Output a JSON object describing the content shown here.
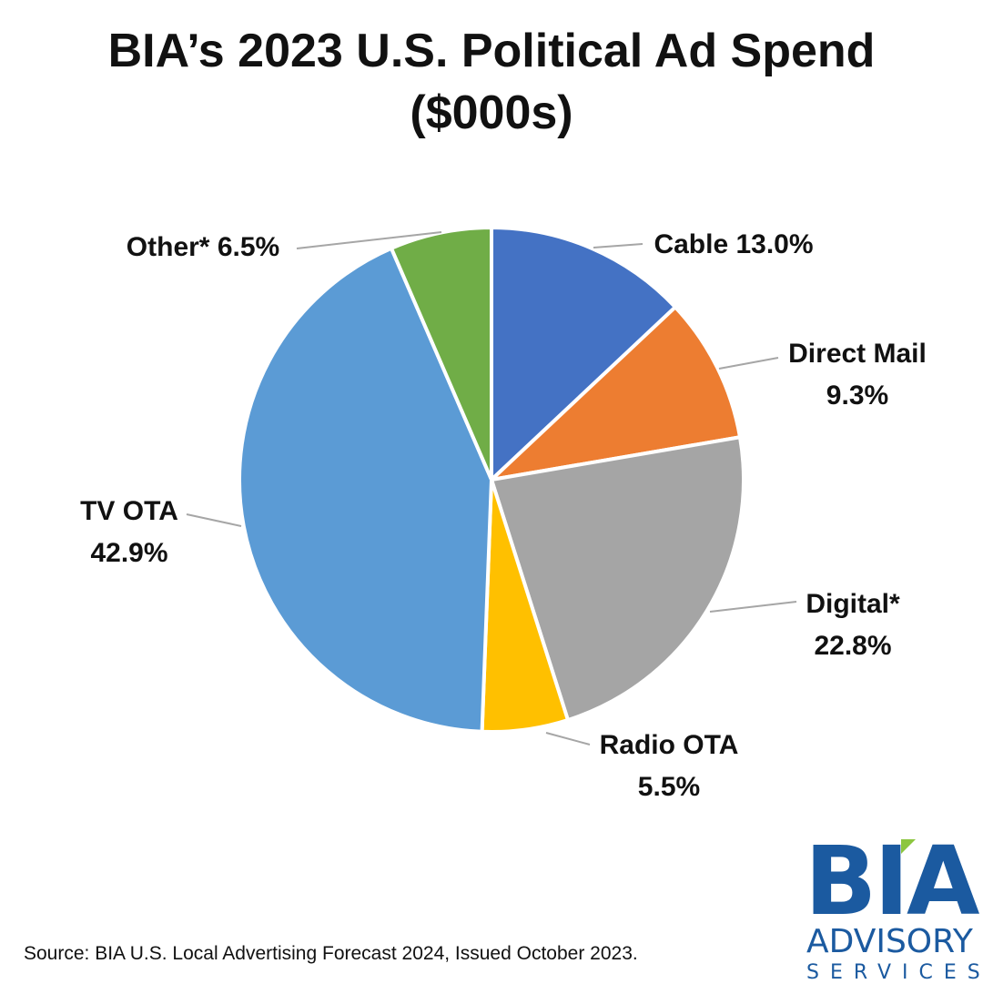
{
  "chart_data": {
    "type": "pie",
    "title_line1": "BIA’s 2023 U.S. Political Ad Spend",
    "title_line2": "($000s)",
    "slices": [
      {
        "name": "Cable",
        "value": 13.0,
        "label": "Cable 13.0%",
        "label_lines": [
          "Cable 13.0%"
        ],
        "color": "#4472c4"
      },
      {
        "name": "Direct Mail",
        "value": 9.3,
        "label": "Direct Mail 9.3%",
        "label_lines": [
          "Direct Mail",
          "9.3%"
        ],
        "color": "#ed7d31"
      },
      {
        "name": "Digital*",
        "value": 22.8,
        "label": "Digital* 22.8%",
        "label_lines": [
          "Digital*",
          "22.8%"
        ],
        "color": "#a5a5a5"
      },
      {
        "name": "Radio OTA",
        "value": 5.5,
        "label": "Radio OTA 5.5%",
        "label_lines": [
          "Radio OTA",
          "5.5%"
        ],
        "color": "#ffc000"
      },
      {
        "name": "TV OTA",
        "value": 42.9,
        "label": "TV OTA 42.9%",
        "label_lines": [
          "TV OTA",
          "42.9%"
        ],
        "color": "#5b9bd5"
      },
      {
        "name": "Other*",
        "value": 6.5,
        "label": "Other* 6.5%",
        "label_lines": [
          "Other* 6.5%"
        ],
        "color": "#70ad47"
      }
    ]
  },
  "source": "Source: BIA U.S. Local Advertising Forecast 2024, Issued October 2023.",
  "logo": {
    "name": "BIA",
    "line2": "ADVISORY",
    "line3": "SERVICES",
    "color": "#1b5aa0",
    "accent_color": "#8cc63f"
  }
}
